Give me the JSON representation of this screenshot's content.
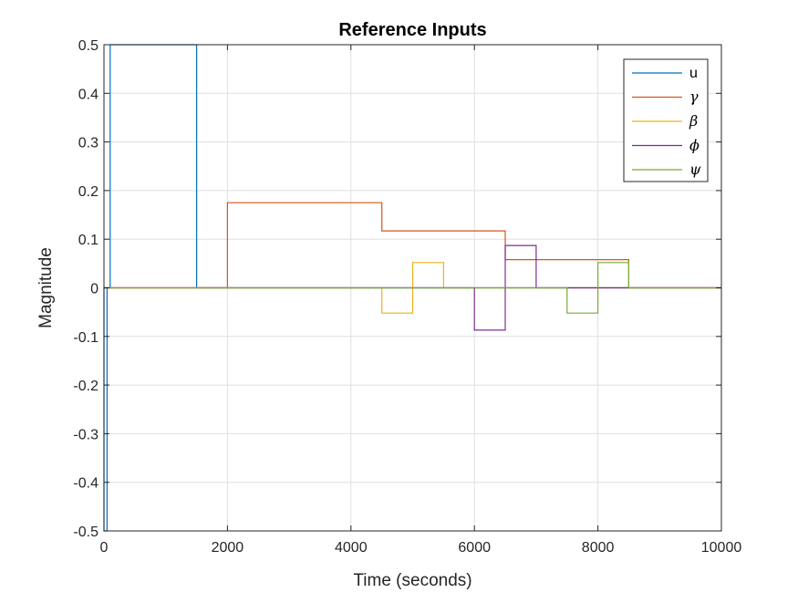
{
  "chart_data": {
    "type": "line",
    "title": "Reference Inputs",
    "xlabel": "Time (seconds)",
    "ylabel": "Magnitude",
    "xlim": [
      0,
      10000
    ],
    "ylim": [
      -0.5,
      0.5
    ],
    "xticks": [
      0,
      2000,
      4000,
      6000,
      8000,
      10000
    ],
    "xtick_labels": [
      "0",
      "2000",
      "4000",
      "6000",
      "8000",
      "10000"
    ],
    "yticks": [
      -0.5,
      -0.4,
      -0.3,
      -0.2,
      -0.1,
      0,
      0.1,
      0.2,
      0.3,
      0.4,
      0.5
    ],
    "ytick_labels": [
      "-0.5",
      "-0.4",
      "-0.3",
      "-0.2",
      "-0.1",
      "0",
      "0.1",
      "0.2",
      "0.3",
      "0.4",
      "0.5"
    ],
    "grid": true,
    "legend_position": "top-right",
    "series": [
      {
        "name": "u",
        "color": "#0072BD",
        "x": [
          0,
          0,
          50,
          50,
          100,
          100,
          1500,
          1500,
          10000
        ],
        "y": [
          0,
          -0.5,
          -0.5,
          0,
          0,
          0.5,
          0.5,
          0,
          0
        ]
      },
      {
        "name": "γ",
        "color": "#D95319",
        "x": [
          0,
          2000,
          2000,
          4500,
          4500,
          6500,
          6500,
          8500,
          8500,
          10000
        ],
        "y": [
          0,
          0,
          0.175,
          0.175,
          0.117,
          0.117,
          0.058,
          0.058,
          0,
          0
        ]
      },
      {
        "name": "β",
        "color": "#EDB120",
        "x": [
          0,
          4500,
          4500,
          5000,
          5000,
          5500,
          5500,
          10000
        ],
        "y": [
          0,
          0,
          -0.052,
          -0.052,
          0.052,
          0.052,
          0,
          0
        ]
      },
      {
        "name": "ϕ",
        "color": "#7E2F8E",
        "x": [
          0,
          6000,
          6000,
          6500,
          6500,
          7000,
          7000,
          10000
        ],
        "y": [
          0,
          0,
          -0.087,
          -0.087,
          0.087,
          0.087,
          0,
          0
        ]
      },
      {
        "name": "ψ",
        "color": "#77AC30",
        "x": [
          0,
          7500,
          7500,
          8000,
          8000,
          8500,
          8500,
          10000
        ],
        "y": [
          0,
          0,
          -0.052,
          -0.052,
          0.052,
          0.052,
          0,
          0
        ]
      }
    ]
  }
}
